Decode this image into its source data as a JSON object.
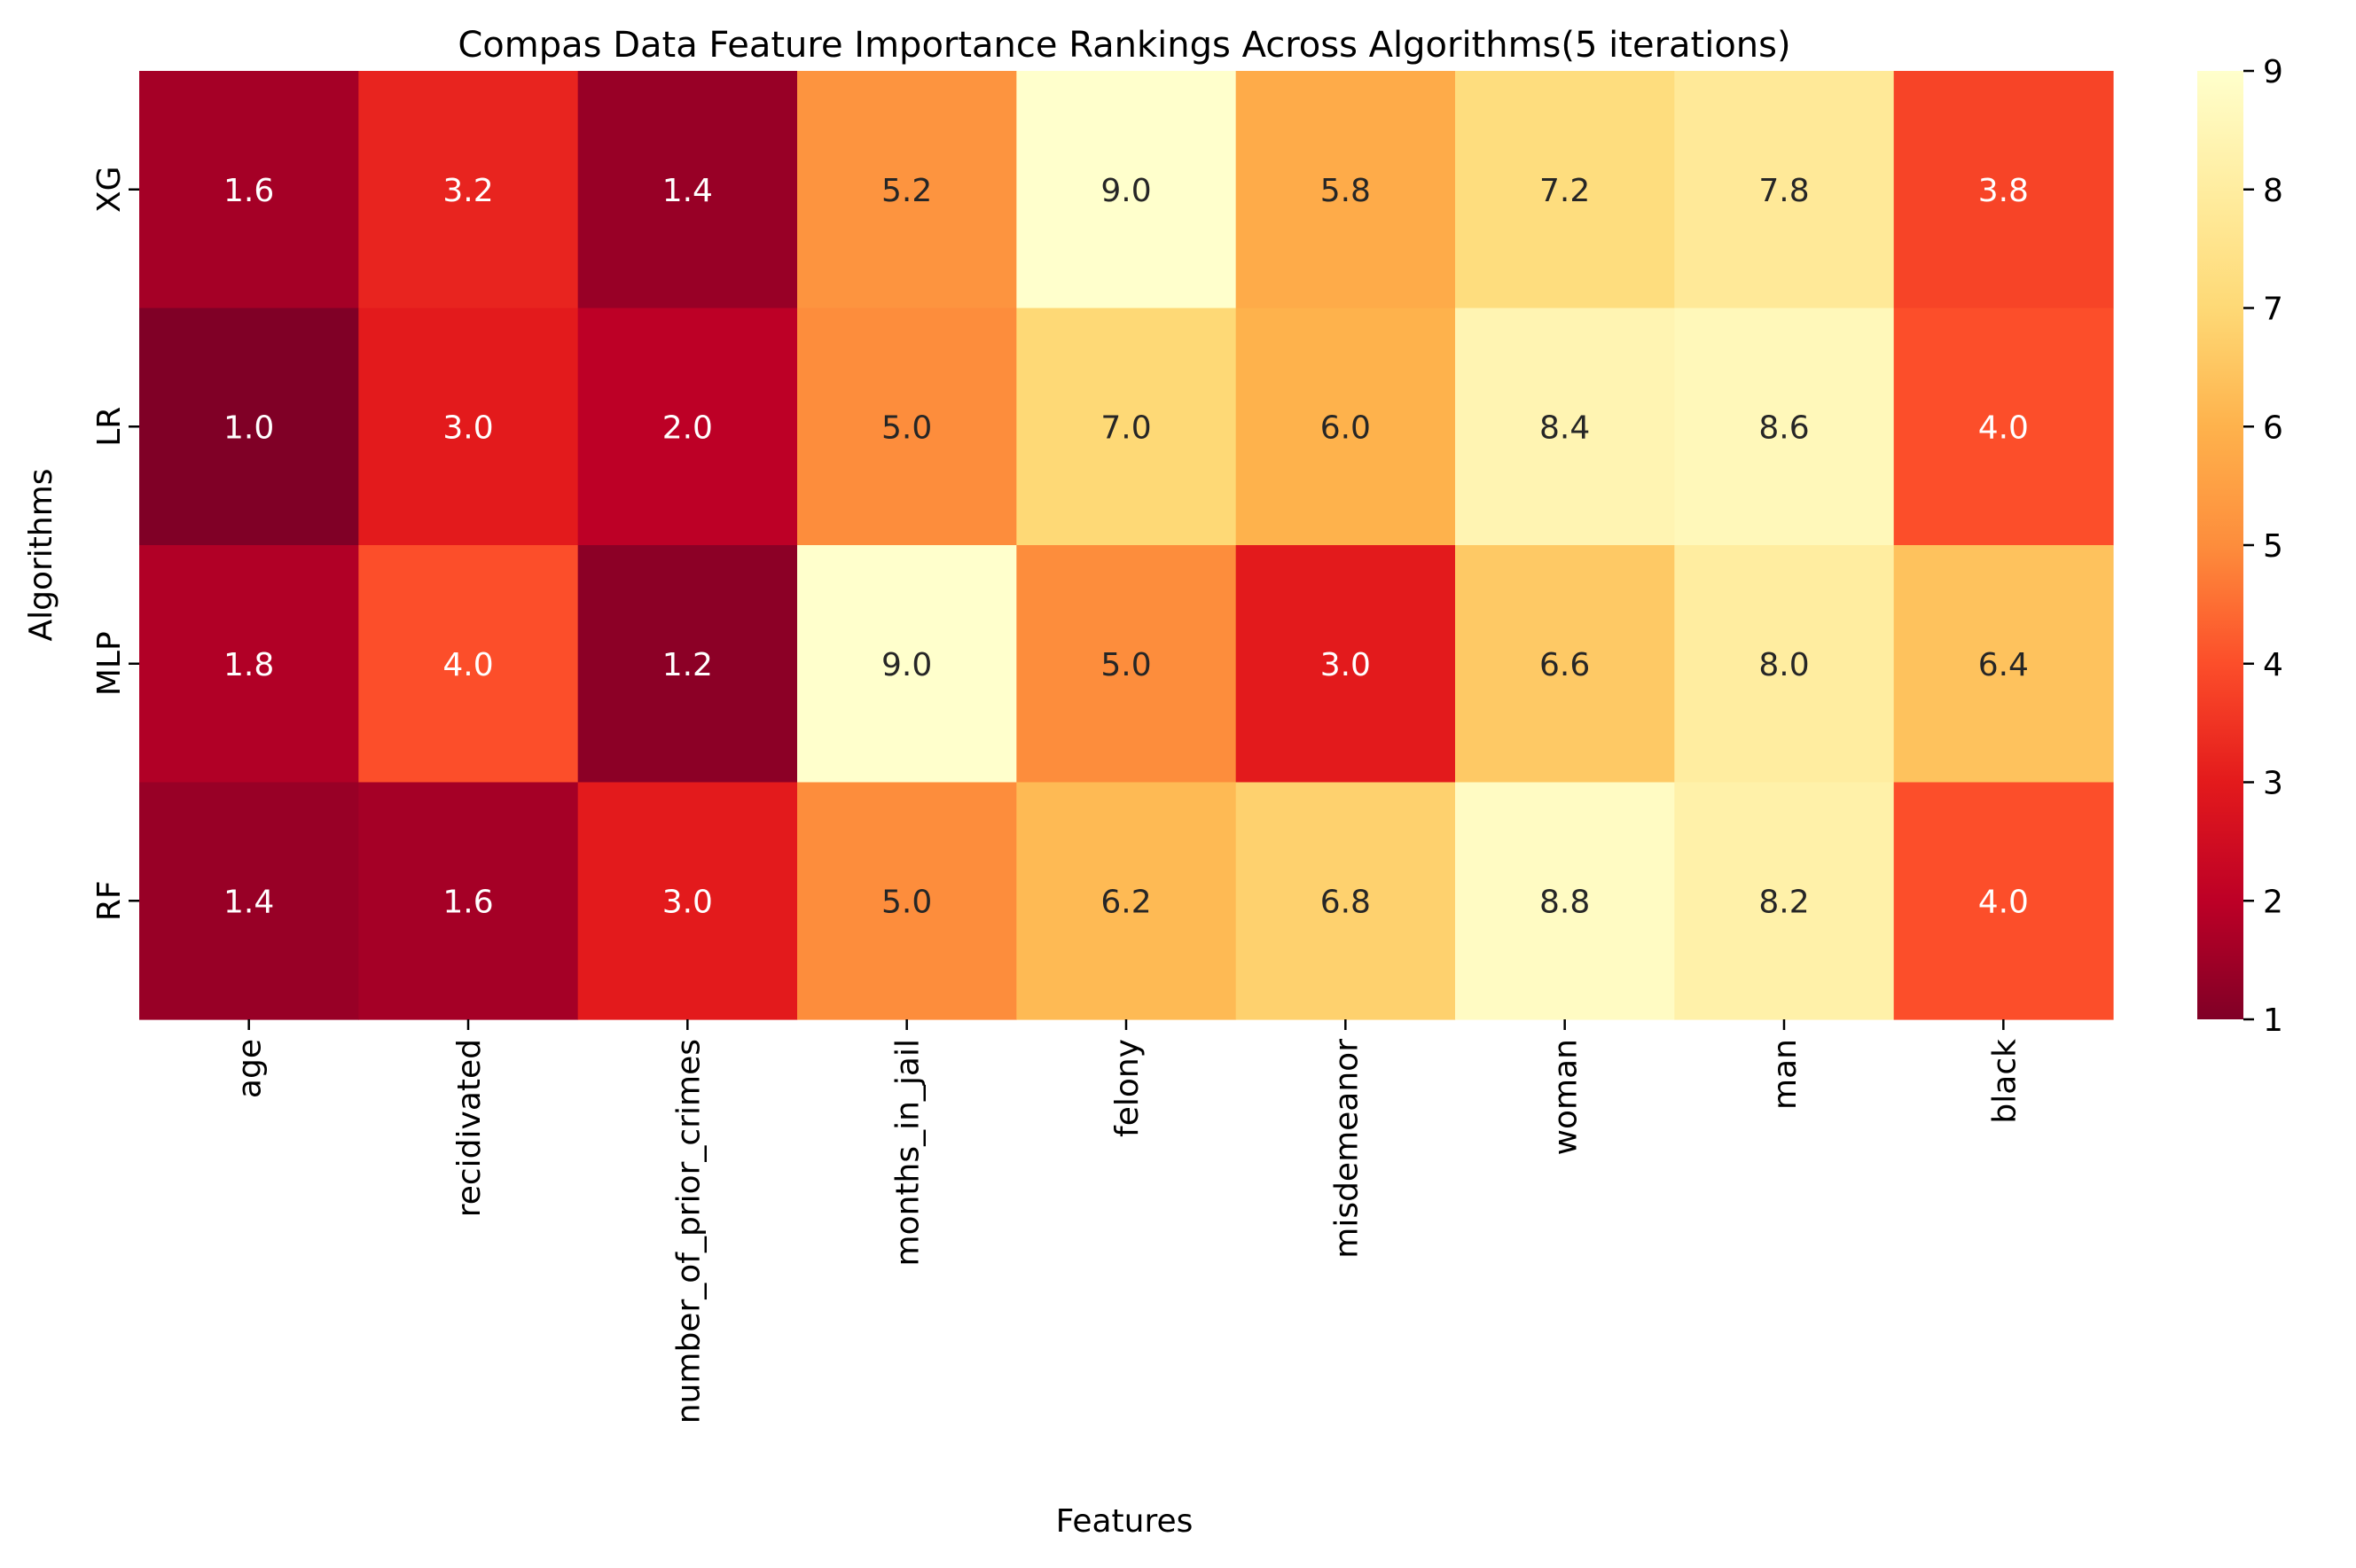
{
  "chart_data": {
    "type": "heatmap",
    "title": "Compas Data Feature Importance Rankings Across Algorithms(5 iterations)",
    "xlabel": "Features",
    "ylabel": "Algorithms",
    "x_categories": [
      "age",
      "recidivated",
      "number_of_prior_crimes",
      "months_in_jail",
      "felony",
      "misdemeanor",
      "woman",
      "man",
      "black"
    ],
    "y_categories": [
      "XG",
      "LR",
      "MLP",
      "RF"
    ],
    "values": [
      [
        1.6,
        3.2,
        1.4,
        5.2,
        9.0,
        5.8,
        7.2,
        7.8,
        3.8
      ],
      [
        1.0,
        3.0,
        2.0,
        5.0,
        7.0,
        6.0,
        8.4,
        8.6,
        4.0
      ],
      [
        1.8,
        4.0,
        1.2,
        9.0,
        5.0,
        3.0,
        6.6,
        8.0,
        6.4
      ],
      [
        1.4,
        1.6,
        3.0,
        5.0,
        6.2,
        6.8,
        8.8,
        8.2,
        4.0
      ]
    ],
    "cell_labels": [
      [
        "1.6",
        "3.2",
        "1.4",
        "5.2",
        "9.0",
        "5.8",
        "7.2",
        "7.8",
        "3.8"
      ],
      [
        "1.0",
        "3.0",
        "2.0",
        "5.0",
        "7.0",
        "6.0",
        "8.4",
        "8.6",
        "4.0"
      ],
      [
        "1.8",
        "4.0",
        "1.2",
        "9.0",
        "5.0",
        "3.0",
        "6.6",
        "8.0",
        "6.4"
      ],
      [
        "1.4",
        "1.6",
        "3.0",
        "5.0",
        "6.2",
        "6.8",
        "8.8",
        "8.2",
        "4.0"
      ]
    ],
    "colormap": "YlOrRd_r",
    "color_range": [
      1,
      9
    ],
    "colorbar_ticks": [
      "1",
      "2",
      "3",
      "4",
      "5",
      "6",
      "7",
      "8",
      "9"
    ],
    "legend": "colorbar-right"
  }
}
